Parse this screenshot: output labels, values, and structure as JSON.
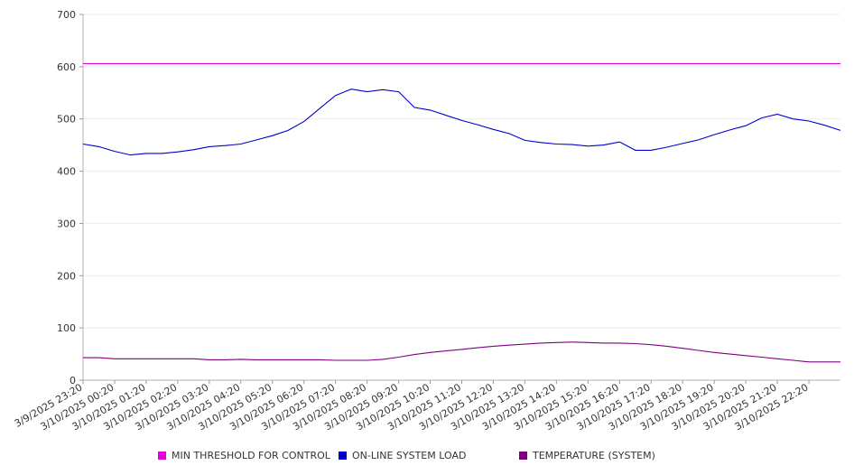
{
  "chart_data": {
    "type": "line",
    "title": "",
    "xlabel": "",
    "ylabel": "",
    "ylim": [
      0,
      700
    ],
    "yticks": [
      0,
      100,
      200,
      300,
      400,
      500,
      600,
      700
    ],
    "grid": true,
    "legend_position": "bottom",
    "x_tick_labels": [
      "3/9/2025 23:20",
      "3/10/2025 00:20",
      "3/10/2025 01:20",
      "3/10/2025 02:20",
      "3/10/2025 03:20",
      "3/10/2025 04:20",
      "3/10/2025 05:20",
      "3/10/2025 06:20",
      "3/10/2025 07:20",
      "3/10/2025 08:20",
      "3/10/2025 09:20",
      "3/10/2025 10:20",
      "3/10/2025 11:20",
      "3/10/2025 12:20",
      "3/10/2025 13:20",
      "3/10/2025 14:20",
      "3/10/2025 15:20",
      "3/10/2025 16:20",
      "3/10/2025 17:20",
      "3/10/2025 18:20",
      "3/10/2025 19:20",
      "3/10/2025 20:20",
      "3/10/2025 21:20",
      "3/10/2025 22:20"
    ],
    "x_hours": [
      0,
      0.5,
      1,
      1.5,
      2,
      2.5,
      3,
      3.5,
      4,
      4.5,
      5,
      5.5,
      6,
      6.5,
      7,
      7.5,
      8,
      8.5,
      9,
      9.5,
      10,
      10.5,
      11,
      11.5,
      12,
      12.5,
      13,
      13.5,
      14,
      14.5,
      15,
      15.5,
      16,
      16.5,
      17,
      17.5,
      18,
      18.5,
      19,
      19.5,
      20,
      20.5,
      21,
      21.5,
      22,
      22.5,
      23,
      23.5,
      24
    ],
    "series": [
      {
        "name": "MIN THRESHOLD FOR CONTROL",
        "color": "#e000e0",
        "values": [
          606,
          606,
          606,
          606,
          606,
          606,
          606,
          606,
          606,
          606,
          606,
          606,
          606,
          606,
          606,
          606,
          606,
          606,
          606,
          606,
          606,
          606,
          606,
          606,
          606,
          606,
          606,
          606,
          606,
          606,
          606,
          606,
          606,
          606,
          606,
          606,
          606,
          606,
          606,
          606,
          606,
          606,
          606,
          606,
          606,
          606,
          606,
          606,
          606
        ]
      },
      {
        "name": "ON-LINE SYSTEM LOAD",
        "color": "#0000cc",
        "values": [
          452,
          447,
          438,
          431,
          434,
          434,
          437,
          441,
          447,
          449,
          452,
          460,
          468,
          478,
          495,
          520,
          545,
          557,
          552,
          556,
          552,
          522,
          517,
          507,
          497,
          489,
          480,
          472,
          459,
          455,
          452,
          451,
          448,
          450,
          456,
          440,
          440,
          446,
          453,
          460,
          470,
          479,
          487,
          502,
          509,
          500,
          496,
          488,
          478
        ]
      },
      {
        "name": "TEMPERATURE (SYSTEM)",
        "color": "#800080",
        "values": [
          43,
          43,
          41,
          41,
          41,
          41,
          41,
          41,
          39,
          39,
          40,
          39,
          39,
          39,
          39,
          39,
          38,
          38,
          38,
          40,
          44,
          49,
          53,
          56,
          59,
          62,
          65,
          67,
          69,
          71,
          72,
          73,
          72,
          71,
          71,
          70,
          68,
          65,
          61,
          57,
          53,
          50,
          47,
          44,
          41,
          38,
          35,
          35,
          35
        ]
      }
    ]
  }
}
